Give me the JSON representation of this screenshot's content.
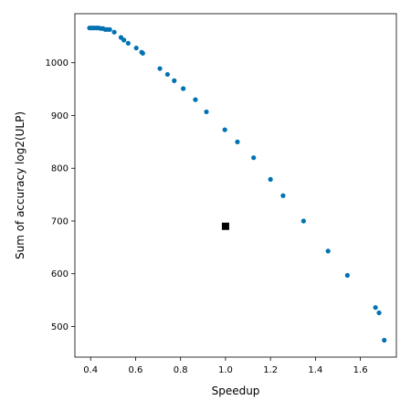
{
  "chart_data": {
    "type": "scatter",
    "title": "",
    "xlabel": "Speedup",
    "ylabel": "Sum of accuracy log2(ULP)",
    "xlim": [
      0.33,
      1.76
    ],
    "ylim": [
      442,
      1093
    ],
    "xticks": [
      "0.4",
      "0.6",
      "0.8",
      "1.0",
      "1.2",
      "1.4",
      "1.6"
    ],
    "yticks": [
      "500",
      "600",
      "700",
      "800",
      "900",
      "1000"
    ],
    "grid": false,
    "legend": "none",
    "series": [
      {
        "marker": "circle",
        "color": "#0072b2",
        "points": [
          [
            0.395,
            1066
          ],
          [
            0.405,
            1066
          ],
          [
            0.415,
            1066
          ],
          [
            0.425,
            1066
          ],
          [
            0.435,
            1066
          ],
          [
            0.445,
            1065
          ],
          [
            0.455,
            1065
          ],
          [
            0.465,
            1063
          ],
          [
            0.475,
            1063
          ],
          [
            0.485,
            1063
          ],
          [
            0.505,
            1058
          ],
          [
            0.535,
            1048
          ],
          [
            0.548,
            1043
          ],
          [
            0.567,
            1037
          ],
          [
            0.603,
            1028
          ],
          [
            0.627,
            1020
          ],
          [
            0.632,
            1018
          ],
          [
            0.708,
            989
          ],
          [
            0.742,
            978
          ],
          [
            0.772,
            966
          ],
          [
            0.812,
            951
          ],
          [
            0.866,
            930
          ],
          [
            0.915,
            907
          ],
          [
            0.997,
            873
          ],
          [
            1.053,
            850
          ],
          [
            1.125,
            820
          ],
          [
            1.2,
            779
          ],
          [
            1.256,
            748
          ],
          [
            1.347,
            700
          ],
          [
            1.456,
            643
          ],
          [
            1.542,
            597
          ],
          [
            1.667,
            536
          ],
          [
            1.683,
            526
          ],
          [
            1.706,
            474
          ]
        ]
      },
      {
        "marker": "square",
        "color": "#000000",
        "points": [
          [
            1.0,
            690
          ]
        ]
      }
    ]
  }
}
